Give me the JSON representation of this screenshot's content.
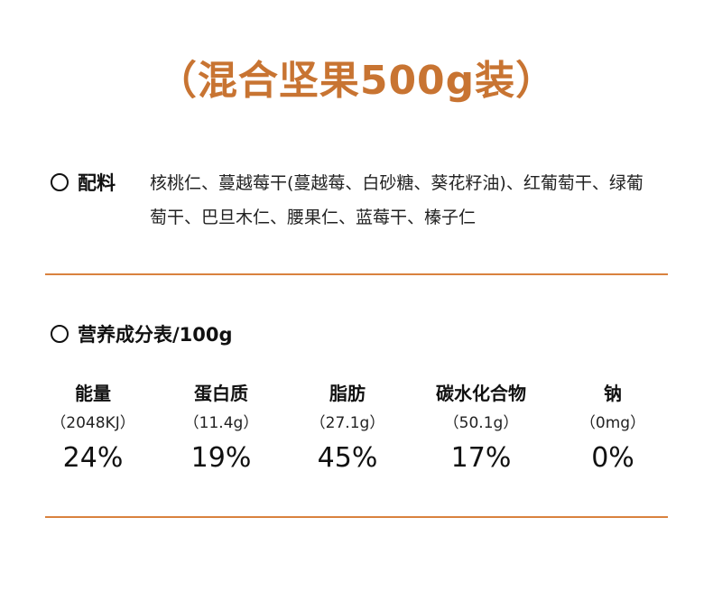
{
  "theme": {
    "accent_color": "#c87432",
    "divider_color": "#d9823e"
  },
  "title": "（混合坚果500g装）",
  "ingredients": {
    "label": "配料",
    "text": "核桃仁、蔓越莓干(蔓越莓、白砂糖、葵花籽油)、红葡萄干、绿葡萄干、巴旦木仁、腰果仁、蓝莓干、榛子仁"
  },
  "nutrition": {
    "label": "营养成分表/100g",
    "items": [
      {
        "name": "能量",
        "amount": "（2048KJ）",
        "percent": "24%"
      },
      {
        "name": "蛋白质",
        "amount": "（11.4g）",
        "percent": "19%"
      },
      {
        "name": "脂肪",
        "amount": "（27.1g）",
        "percent": "45%"
      },
      {
        "name": "碳水化合物",
        "amount": "（50.1g）",
        "percent": "17%"
      },
      {
        "name": "钠",
        "amount": "（0mg）",
        "percent": "0%"
      }
    ]
  }
}
